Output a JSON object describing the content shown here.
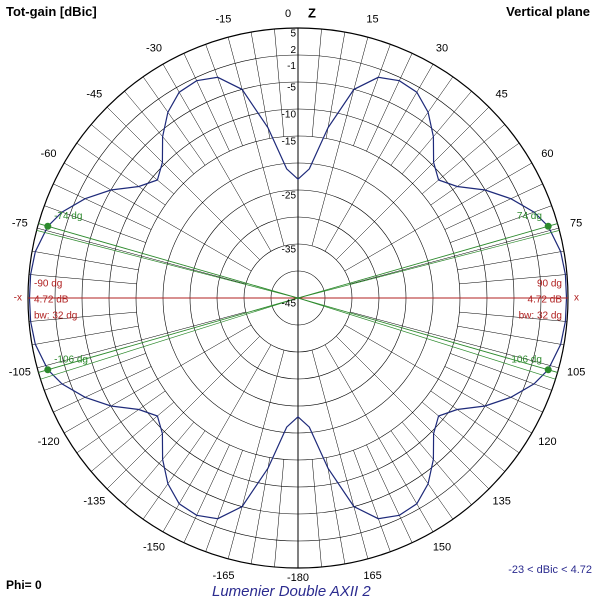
{
  "header": {
    "title_left": "Tot-gain [dBic]",
    "title_right": "Vertical plane",
    "axis_z": "Z",
    "axis_left": "-x",
    "axis_right": "x"
  },
  "footer": {
    "phi_label": "Phi= 0",
    "range_label": "-23 < dBic < 4.72",
    "antenna_name": "Lumenier Double AXII 2"
  },
  "colors": {
    "grid": "#000000",
    "pattern": "#1e2a7a",
    "beam_marker": "#2d8a2d",
    "max_marker": "#b02020",
    "footer_title": "#2b2b8f"
  },
  "chart_data": {
    "type": "polar",
    "title": "Vertical plane",
    "quantity": "Tot-gain [dBic]",
    "phi": 0,
    "radial_ticks_db": [
      5,
      2,
      -1,
      -5,
      -10,
      -15,
      -25,
      -35,
      -45
    ],
    "angle_ticks_deg": [
      0,
      15,
      30,
      45,
      60,
      75,
      90,
      105,
      120,
      135,
      150,
      165,
      180,
      -165,
      -150,
      -135,
      -120,
      -105,
      -90,
      -75,
      -60,
      -45,
      -30,
      -15
    ],
    "angle_labels_right": [
      "0",
      "15",
      "30",
      "45",
      "60",
      "75",
      "-",
      "105",
      "120",
      "135",
      "150",
      "165",
      "-180"
    ],
    "angle_labels_left": [
      "-15",
      "-30",
      "-45",
      "-60",
      "-75",
      "-",
      "-105",
      "-120",
      "-135",
      "-150",
      "-165"
    ],
    "gain_range_db": [
      -23,
      4.72
    ],
    "pattern": {
      "name": "Tot-gain",
      "theta_deg": [
        0,
        5,
        10,
        15,
        20,
        25,
        30,
        35,
        40,
        45,
        50,
        55,
        60,
        65,
        70,
        74,
        80,
        85,
        90,
        95,
        100,
        106,
        110,
        115,
        120,
        125,
        130,
        135,
        140,
        145,
        150,
        155,
        160,
        165,
        170,
        175,
        180
      ],
      "gain_db": [
        -23,
        -21,
        -13,
        -5,
        -1.5,
        -0.6,
        -1,
        -3,
        -6,
        -9.5,
        -11,
        -9,
        -5,
        -1.5,
        1.5,
        3.2,
        4.4,
        4.7,
        4.72,
        4.7,
        4.4,
        3.2,
        1.5,
        -1.5,
        -5,
        -9,
        -11,
        -9.5,
        -6,
        -3,
        -1,
        -0.6,
        -1.5,
        -5,
        -13,
        -21,
        -23
      ],
      "symmetric_about_z": true
    },
    "max_markers": [
      {
        "side": "right",
        "angle_label": "90 dg",
        "gain_label": "4.72 dB",
        "bw_label": "bw: 32 dg"
      },
      {
        "side": "left",
        "angle_label": "-90 dg",
        "gain_label": "4.72 dB",
        "bw_label": "bw: 32 dg"
      }
    ],
    "beamwidth_markers": [
      {
        "angle": 74,
        "label": "74 dg",
        "side": "right"
      },
      {
        "angle": 106,
        "label": "106 dg",
        "side": "right"
      },
      {
        "angle": -74,
        "label": "-74 dg",
        "side": "left"
      },
      {
        "angle": -106,
        "label": "-106 dg",
        "side": "left"
      }
    ]
  }
}
